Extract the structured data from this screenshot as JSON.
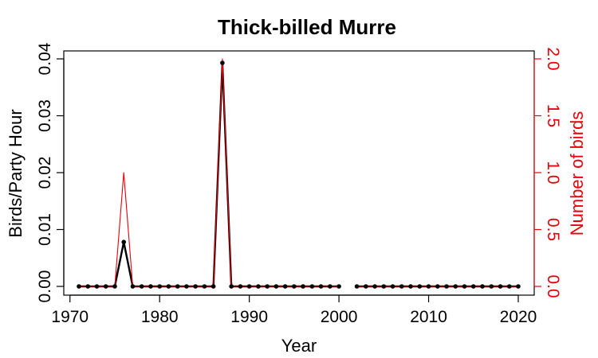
{
  "chart_data": {
    "type": "line",
    "title": "Thick-billed Murre",
    "xlabel": "Year",
    "ylabel": "Birds/Party Hour",
    "y2label": "Number of birds",
    "xlim": [
      1971,
      2020
    ],
    "ylim": [
      0,
      0.04
    ],
    "y2lim": [
      0,
      2
    ],
    "x_ticks": [
      1970,
      1980,
      1990,
      2000,
      2010,
      2020
    ],
    "y_ticks": [
      "0.00",
      "0.01",
      "0.02",
      "0.03",
      "0.04"
    ],
    "y2_ticks": [
      "0.0",
      "0.5",
      "1.0",
      "1.5",
      "2.0"
    ],
    "grid": false,
    "colors": {
      "birds_per_party_hour": "#000000",
      "number_of_birds": "#e8000b",
      "frame": "#000000"
    },
    "years": [
      1971,
      1972,
      1973,
      1974,
      1975,
      1976,
      1977,
      1978,
      1979,
      1980,
      1981,
      1982,
      1983,
      1984,
      1985,
      1986,
      1987,
      1988,
      1989,
      1990,
      1991,
      1992,
      1993,
      1994,
      1995,
      1996,
      1997,
      1998,
      1999,
      2000,
      2002,
      2003,
      2004,
      2005,
      2006,
      2007,
      2008,
      2009,
      2010,
      2011,
      2012,
      2013,
      2014,
      2015,
      2016,
      2017,
      2018,
      2019,
      2020
    ],
    "series": [
      {
        "axis": "left",
        "values": [
          0,
          0,
          0,
          0,
          0,
          0.0078,
          0,
          0,
          0,
          0,
          0,
          0,
          0,
          0,
          0,
          0,
          0.0393,
          0,
          0,
          0,
          0,
          0,
          0,
          0,
          0,
          0,
          0,
          0,
          0,
          0,
          0,
          0,
          0,
          0,
          0,
          0,
          0,
          0,
          0,
          0,
          0,
          0,
          0,
          0,
          0,
          0,
          0,
          0,
          0
        ]
      },
      {
        "axis": "right",
        "values": [
          0,
          0,
          0,
          0,
          0,
          1,
          0,
          0,
          0,
          0,
          0,
          0,
          0,
          0,
          0,
          0,
          2,
          0,
          0,
          0,
          0,
          0,
          0,
          0,
          0,
          0,
          0,
          0,
          0,
          0,
          0,
          0,
          0,
          0,
          0,
          0,
          0,
          0,
          0,
          0,
          0,
          0,
          0,
          0,
          0,
          0,
          0,
          0,
          0
        ]
      }
    ]
  }
}
